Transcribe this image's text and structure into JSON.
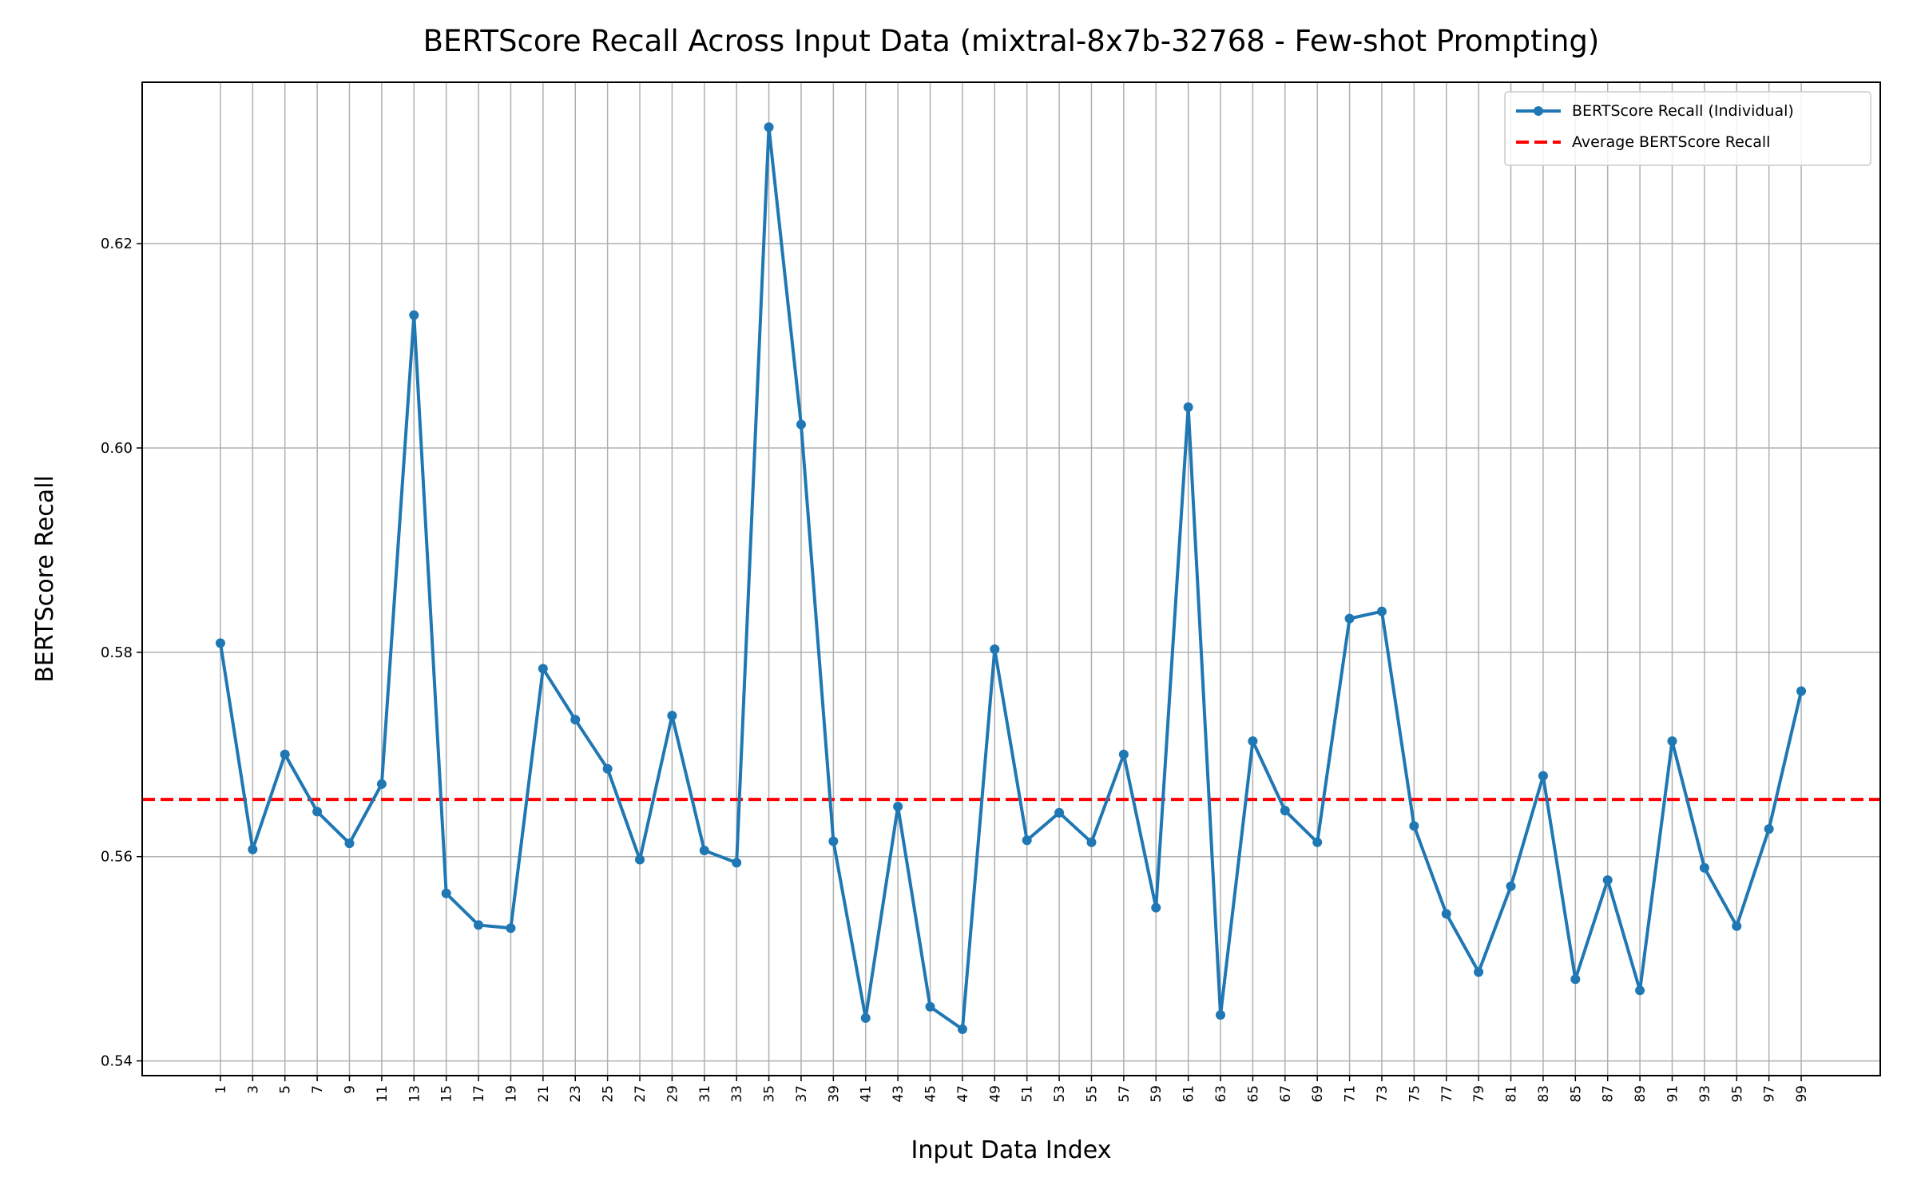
{
  "chart_data": {
    "type": "line",
    "title": "BERTScore Recall Across Input Data (mixtral-8x7b-32768 - Few-shot Prompting)",
    "x_label": "Input Data Index",
    "y_label": "BERTScore Recall",
    "x": [
      1,
      3,
      5,
      7,
      9,
      11,
      13,
      15,
      17,
      19,
      21,
      23,
      25,
      27,
      29,
      31,
      33,
      35,
      37,
      39,
      41,
      43,
      45,
      47,
      49,
      51,
      53,
      55,
      57,
      59,
      61,
      63,
      65,
      67,
      69,
      71,
      73,
      75,
      77,
      79,
      81,
      83,
      85,
      87,
      89,
      91,
      93,
      95,
      97,
      99
    ],
    "series": [
      {
        "name": "BERTScore Recall (Individual)",
        "color": "#1f77b4",
        "values": [
          0.5809,
          0.5607,
          0.57,
          0.5644,
          0.5613,
          0.5671,
          0.613,
          0.5564,
          0.5533,
          0.553,
          0.5784,
          0.5734,
          0.5686,
          0.5597,
          0.5738,
          0.5606,
          0.5594,
          0.6314,
          0.6023,
          0.5615,
          0.5442,
          0.5649,
          0.5453,
          0.5431,
          0.5803,
          0.5616,
          0.5643,
          0.5614,
          0.57,
          0.555,
          0.604,
          0.5445,
          0.5713,
          0.5645,
          0.5614,
          0.5833,
          0.584,
          0.563,
          0.5544,
          0.5487,
          0.5571,
          0.5679,
          0.548,
          0.5577,
          0.5469,
          0.5713,
          0.5589,
          0.5532,
          0.5627,
          0.5762
        ]
      }
    ],
    "average": {
      "name": "Average BERTScore Recall",
      "color": "#ff0000",
      "value": 0.5656
    },
    "xlim": [
      -3.85,
      103.9
    ],
    "ylim": [
      0.53856,
      0.6358
    ],
    "xticks": [
      1,
      3,
      5,
      7,
      9,
      11,
      13,
      15,
      17,
      19,
      21,
      23,
      25,
      27,
      29,
      31,
      33,
      35,
      37,
      39,
      41,
      43,
      45,
      47,
      49,
      51,
      53,
      55,
      57,
      59,
      61,
      63,
      65,
      67,
      69,
      71,
      73,
      75,
      77,
      79,
      81,
      83,
      85,
      87,
      89,
      91,
      93,
      95,
      97,
      99
    ],
    "yticks": [
      0.54,
      0.56,
      0.58,
      {
        "value": 0.6,
        "label": "0.60"
      },
      0.62
    ],
    "grid": true,
    "legend": "upper right"
  }
}
